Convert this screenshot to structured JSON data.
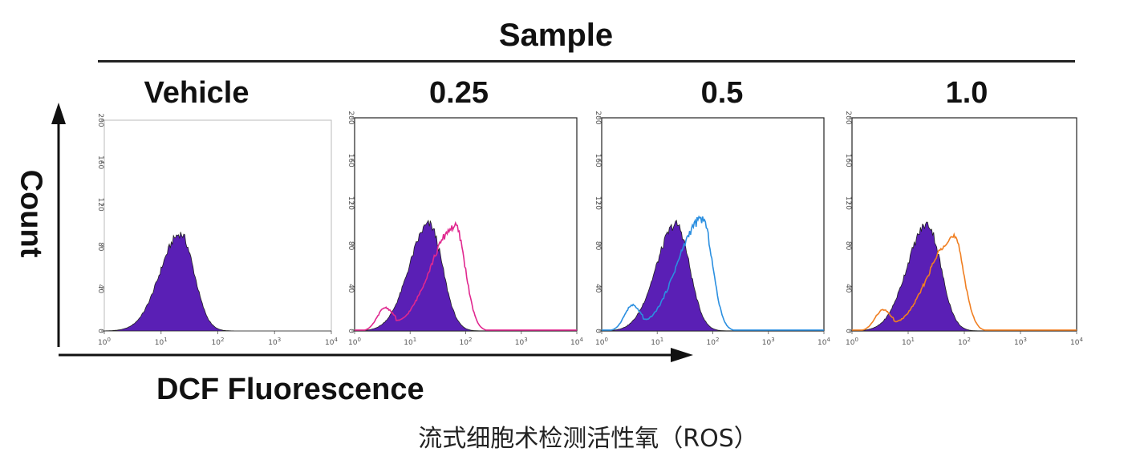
{
  "header": {
    "title": "Sample",
    "count_label": "Count",
    "x_label": "DCF Fluorescence",
    "caption": "流式细胞术检测活性氧（ROS）"
  },
  "colors": {
    "filled": "#5a1fb5",
    "outline_025": "#e0288f",
    "outline_05": "#2b8fe0",
    "outline_10": "#f07f22"
  },
  "chart_data": [
    {
      "type": "area",
      "title": "Vehicle",
      "xscale": "log",
      "xlim": [
        1,
        10000
      ],
      "ylim": [
        0,
        200
      ],
      "xticks": [
        "10^0",
        "10^1",
        "10^2",
        "10^3",
        "10^4"
      ],
      "yticks": [
        "0",
        "40",
        "80",
        "120",
        "160",
        "200"
      ],
      "series": [
        {
          "kind": "filled",
          "peak_x": 22,
          "peak_y": 92
        }
      ]
    },
    {
      "type": "area",
      "title": "0.25",
      "xscale": "log",
      "xlim": [
        1,
        10000
      ],
      "ylim": [
        0,
        200
      ],
      "xticks": [
        "10^0",
        "10^1",
        "10^2",
        "10^3",
        "10^4"
      ],
      "yticks": [
        "0",
        "40",
        "80",
        "120",
        "160",
        "200"
      ],
      "series": [
        {
          "kind": "filled",
          "peak_x": 22,
          "peak_y": 100
        },
        {
          "kind": "outline",
          "peak_x": 65,
          "peak_y": 98,
          "shoulder_x": 3.5,
          "shoulder_y": 20
        }
      ]
    },
    {
      "type": "area",
      "title": "0.5",
      "xscale": "log",
      "xlim": [
        1,
        10000
      ],
      "ylim": [
        0,
        200
      ],
      "xticks": [
        "10^0",
        "10^1",
        "10^2",
        "10^3",
        "10^4"
      ],
      "yticks": [
        "0",
        "40",
        "80",
        "120",
        "160",
        "200"
      ],
      "series": [
        {
          "kind": "filled",
          "peak_x": 22,
          "peak_y": 100
        },
        {
          "kind": "outline",
          "peak_x": 65,
          "peak_y": 105,
          "shoulder_x": 3.5,
          "shoulder_y": 22
        }
      ]
    },
    {
      "type": "area",
      "title": "1.0",
      "xscale": "log",
      "xlim": [
        1,
        10000
      ],
      "ylim": [
        0,
        200
      ],
      "xticks": [
        "10^0",
        "10^1",
        "10^2",
        "10^3",
        "10^4"
      ],
      "yticks": [
        "0",
        "40",
        "80",
        "120",
        "160",
        "200"
      ],
      "series": [
        {
          "kind": "filled",
          "peak_x": 22,
          "peak_y": 100
        },
        {
          "kind": "outline",
          "peak_x": 65,
          "peak_y": 88,
          "shoulder_x": 3.5,
          "shoulder_y": 18
        }
      ]
    }
  ]
}
